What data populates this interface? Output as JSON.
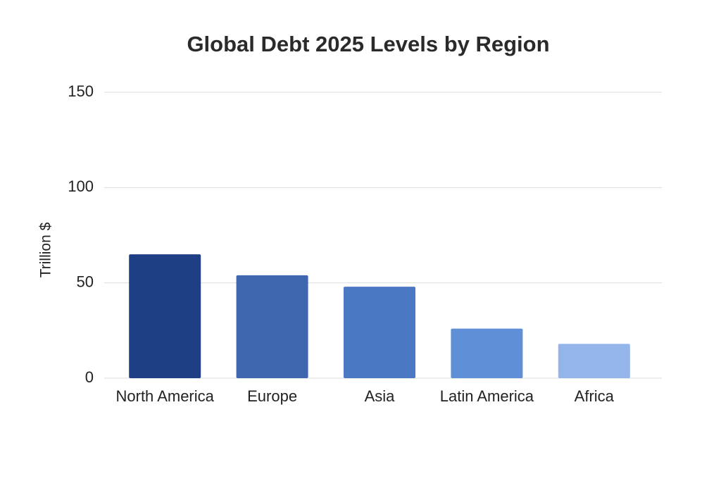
{
  "chart_data": {
    "type": "bar",
    "title": "Global Debt 2025 Levels by Region",
    "y_label": "Trillion $",
    "categories": [
      "North America",
      "Europe",
      "Asia",
      "Latin America",
      "Africa"
    ],
    "values": [
      65,
      54,
      48,
      26,
      18
    ],
    "colors": [
      "#1f3f85",
      "#3f67b0",
      "#4b78c2",
      "#5f8fd6",
      "#93b5ea"
    ],
    "ylim": [
      0,
      150
    ],
    "yticks": [
      0,
      50,
      100,
      150
    ],
    "grid": true
  }
}
